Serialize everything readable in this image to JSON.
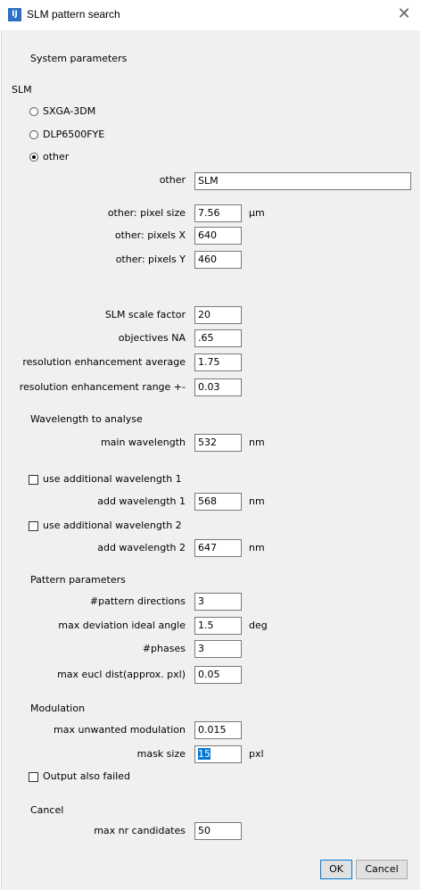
{
  "window": {
    "title": "SLM pattern search",
    "icon_text": "IJ"
  },
  "sections": {
    "system_parameters": "System parameters",
    "slm": "SLM",
    "wavelength": "Wavelength to analyse",
    "pattern": "Pattern parameters",
    "modulation": "Modulation",
    "cancel": "Cancel"
  },
  "slm_options": [
    {
      "label": "SXGA-3DM",
      "checked": false
    },
    {
      "label": "DLP6500FYE",
      "checked": false
    },
    {
      "label": "other",
      "checked": true
    }
  ],
  "fields": {
    "other_name": {
      "label": "other",
      "value": "SLM"
    },
    "pixel_size": {
      "label": "other: pixel size",
      "value": "7.56",
      "unit": "µm"
    },
    "pixels_x": {
      "label": "other: pixels X",
      "value": "640"
    },
    "pixels_y": {
      "label": "other: pixels Y",
      "value": "460"
    },
    "scale_factor": {
      "label": "SLM scale factor",
      "value": "20"
    },
    "objectives_na": {
      "label": "objectives NA",
      "value": ".65"
    },
    "res_enh_avg": {
      "label": "resolution enhancement average",
      "value": "1.75"
    },
    "res_enh_range": {
      "label": "resolution enhancement range +-",
      "value": "0.03"
    },
    "main_wavelength": {
      "label": "main wavelength",
      "value": "532",
      "unit": "nm"
    },
    "add_wavelength_1": {
      "label": "add wavelength 1",
      "value": "568",
      "unit": "nm"
    },
    "add_wavelength_2": {
      "label": "add wavelength 2",
      "value": "647",
      "unit": "nm"
    },
    "pattern_directions": {
      "label": "#pattern directions",
      "value": "3"
    },
    "max_deviation": {
      "label": "max deviation ideal angle",
      "value": "1.5",
      "unit": "deg"
    },
    "phases": {
      "label": "#phases",
      "value": "3"
    },
    "max_eucl_dist": {
      "label": "max eucl dist(approx. pxl)",
      "value": "0.05"
    },
    "max_unwanted_mod": {
      "label": "max unwanted modulation",
      "value": "0.015"
    },
    "mask_size": {
      "label": "mask size",
      "value": "15",
      "unit": "pxl"
    },
    "max_candidates": {
      "label": "max nr candidates",
      "value": "50"
    }
  },
  "checkboxes": {
    "use_add_wl_1": {
      "label": "use additional wavelength 1",
      "checked": false
    },
    "use_add_wl_2": {
      "label": "use additional wavelength 2",
      "checked": false
    },
    "output_failed": {
      "label": "Output also failed",
      "checked": false
    }
  },
  "buttons": {
    "ok": "OK",
    "cancel": "Cancel"
  },
  "colors": {
    "panel_bg": "#f0f0f0",
    "selection": "#0078d7",
    "icon_bg": "#2b6fc6"
  }
}
